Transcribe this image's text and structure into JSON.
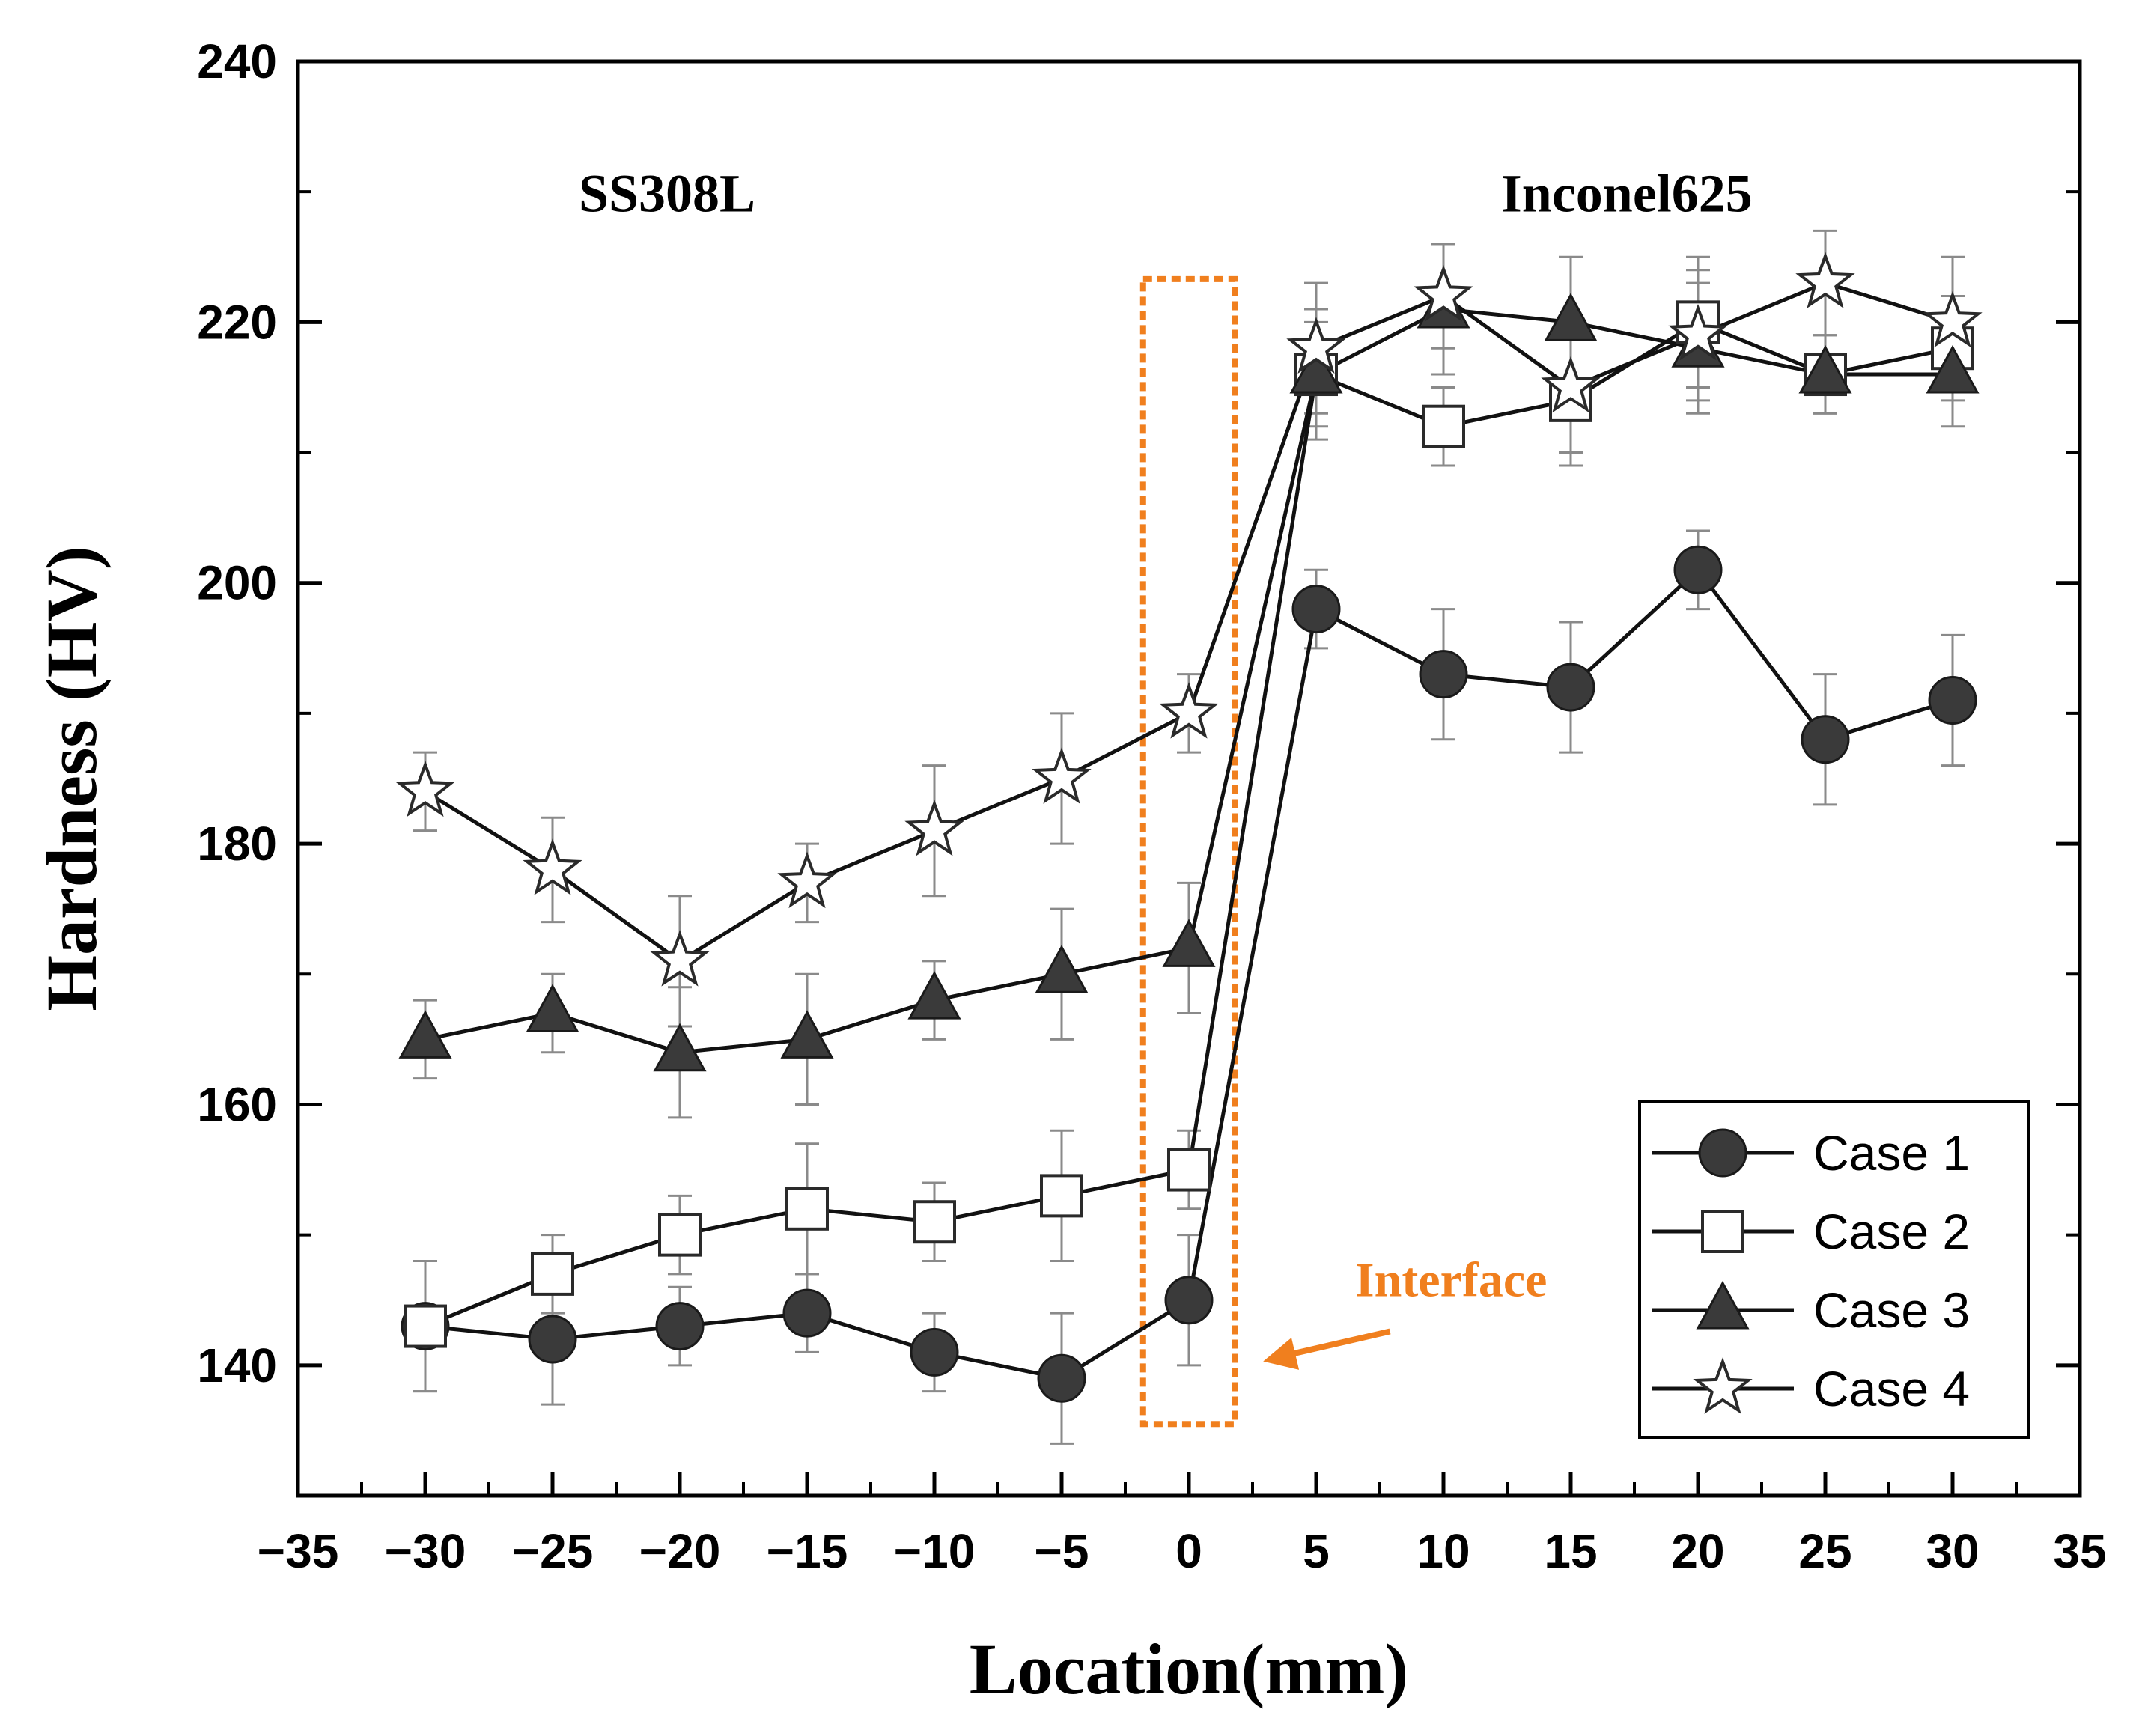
{
  "chart_data": {
    "type": "line",
    "title": "",
    "xlabel": "Location(mm)",
    "ylabel": "Hardness (HV)",
    "xlim": [
      -35,
      35
    ],
    "ylim": [
      130,
      240
    ],
    "xticks": [
      -35,
      -30,
      -25,
      -20,
      -15,
      -10,
      -5,
      0,
      5,
      10,
      15,
      20,
      25,
      30,
      35
    ],
    "xtick_labels": [
      "−35",
      "−30",
      "−25",
      "−20",
      "−15",
      "−10",
      "−5",
      "0",
      "5",
      "10",
      "15",
      "20",
      "25",
      "30",
      "35"
    ],
    "yticks": [
      140,
      160,
      180,
      200,
      220,
      240
    ],
    "ytick_labels": [
      "140",
      "160",
      "180",
      "200",
      "220",
      "240"
    ],
    "x": [
      -30,
      -25,
      -20,
      -15,
      -10,
      -5,
      0,
      5,
      10,
      15,
      20,
      25,
      30
    ],
    "series": [
      {
        "name": "Case 1",
        "marker": "circle",
        "values": [
          143,
          142,
          143,
          144,
          141,
          139,
          145,
          198,
          193,
          192,
          201,
          188,
          191
        ],
        "errors": [
          5,
          5,
          3,
          3,
          3,
          5,
          5,
          3,
          5,
          5,
          3,
          5,
          5
        ]
      },
      {
        "name": "Case 2",
        "marker": "square",
        "values": [
          143,
          147,
          150,
          152,
          151,
          153,
          155,
          216,
          212,
          214,
          220,
          216,
          218
        ],
        "errors": [
          5,
          3,
          3,
          5,
          3,
          5,
          3,
          4,
          3,
          5,
          5,
          3,
          4
        ]
      },
      {
        "name": "Case 3",
        "marker": "triangle",
        "values": [
          165,
          167,
          164,
          165,
          168,
          170,
          172,
          216,
          221,
          220,
          218,
          216,
          216
        ],
        "errors": [
          3,
          3,
          5,
          5,
          3,
          5,
          5,
          5,
          5,
          5,
          5,
          3,
          4
        ]
      },
      {
        "name": "Case 4",
        "marker": "star",
        "values": [
          184,
          178,
          171,
          177,
          181,
          185,
          190,
          218,
          222,
          215,
          219,
          223,
          220
        ],
        "errors": [
          3,
          4,
          5,
          3,
          5,
          5,
          3,
          5,
          4,
          5,
          5,
          4,
          5
        ]
      }
    ],
    "region_labels": [
      "SS308L",
      "Inconel625"
    ],
    "annotation": {
      "text": "Interface",
      "color": "#F07F1E",
      "box_x_range": [
        -1.8,
        1.8
      ],
      "box_y_range": [
        135.5,
        223.3
      ]
    },
    "grid": false,
    "legend": "bottom-right"
  }
}
